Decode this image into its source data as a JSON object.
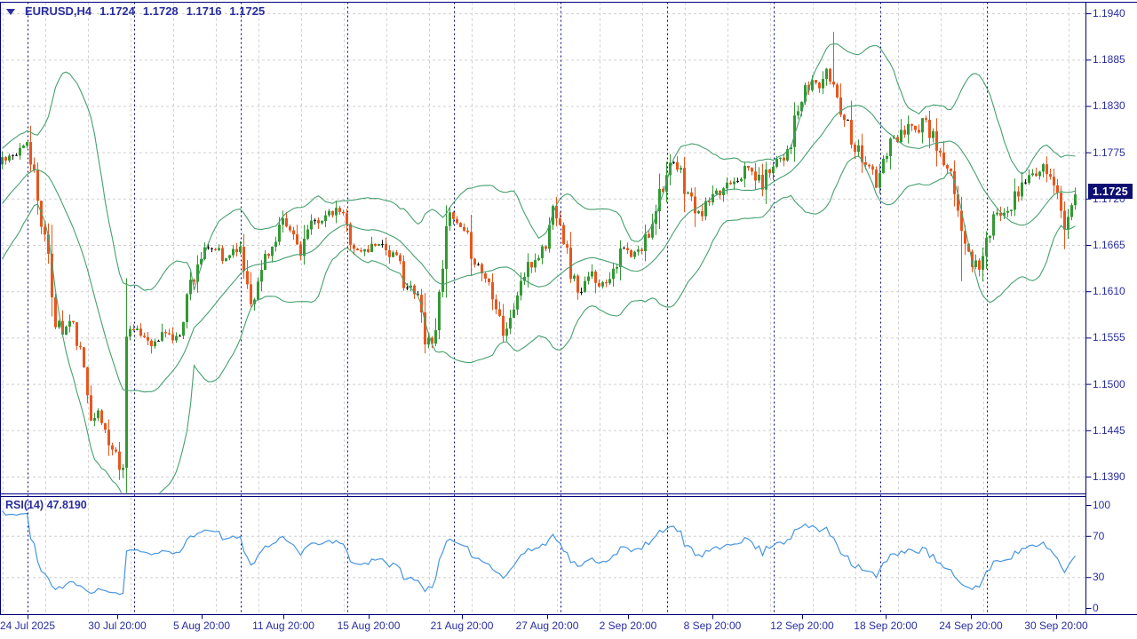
{
  "header": {
    "symbol": "EURUSD,H4",
    "open": "1.1724",
    "high": "1.1728",
    "low": "1.1716",
    "close": "1.1725"
  },
  "indicator_label": {
    "name": "RSI(14)",
    "value": "47.8190"
  },
  "price_axis": {
    "current_price": "1.1725"
  },
  "colors": {
    "background": "#FFFFFF",
    "axis_text": "#282DA0",
    "grid_gray": "#D0D0D0",
    "grid_navy": "#00007E",
    "candle_up": "#339933",
    "candle_down": "#E8561E",
    "doji": "#111111",
    "bollinger": "#46A06E",
    "rsi_line": "#4795E0",
    "badge_bg": "#0D0D72",
    "badge_text": "#FFFFFF"
  },
  "chart_data": {
    "type": "candlestick",
    "symbol": "EURUSD",
    "timeframe": "H4",
    "title": "EURUSD,H4 1.1724 1.1728 1.1716 1.1725",
    "ohlc_display": {
      "open": 1.1724,
      "high": 1.1728,
      "low": 1.1716,
      "close": 1.1725
    },
    "price_axis_ticks": [
      "1.1940",
      "1.1885",
      "1.1830",
      "1.1775",
      "1.1720",
      "1.1665",
      "1.1610",
      "1.1555",
      "1.1500",
      "1.1445",
      "1.1390"
    ],
    "rsi_axis_ticks": [
      "100",
      "70",
      "30",
      "0"
    ],
    "time_axis_ticks": [
      "24 Jul 2025",
      "30 Jul 20:00",
      "5 Aug 20:00",
      "11 Aug 20:00",
      "15 Aug 20:00",
      "21 Aug 20:00",
      "27 Aug 20:00",
      "2 Sep 20:00",
      "8 Sep 20:00",
      "12 Sep 20:00",
      "18 Sep 20:00",
      "24 Sep 20:00",
      "30 Sep 20:00"
    ],
    "price_ylim": [
      1.1367,
      1.1954
    ],
    "bars_visible": 303,
    "overlay": {
      "name": "bollinger-bands",
      "period": 20,
      "deviation": 2
    },
    "indicator": {
      "name": "RSI",
      "period": 14,
      "last_value": 47.819,
      "levels": [
        70,
        30
      ],
      "range": [
        0,
        100
      ]
    },
    "close_keyframes": [
      [
        -20,
        1.1652
      ],
      [
        -14,
        1.1688
      ],
      [
        -8,
        1.1724
      ],
      [
        -3,
        1.1752
      ],
      [
        0,
        1.1768
      ],
      [
        4,
        1.1772
      ],
      [
        7,
        1.1782
      ],
      [
        9,
        1.175
      ],
      [
        11,
        1.17
      ],
      [
        13,
        1.164
      ],
      [
        15,
        1.1578
      ],
      [
        17,
        1.156
      ],
      [
        19,
        1.1574
      ],
      [
        21,
        1.1556
      ],
      [
        23,
        1.151
      ],
      [
        25,
        1.147
      ],
      [
        27,
        1.1462
      ],
      [
        29,
        1.1445
      ],
      [
        31,
        1.1422
      ],
      [
        33,
        1.1408
      ],
      [
        34,
        1.1396
      ],
      [
        35,
        1.157
      ],
      [
        37,
        1.1562
      ],
      [
        40,
        1.1556
      ],
      [
        43,
        1.1548
      ],
      [
        46,
        1.1562
      ],
      [
        49,
        1.155
      ],
      [
        51,
        1.1585
      ],
      [
        53,
        1.162
      ],
      [
        55,
        1.1645
      ],
      [
        57,
        1.1656
      ],
      [
        60,
        1.166
      ],
      [
        62,
        1.1645
      ],
      [
        64,
        1.1656
      ],
      [
        66,
        1.1664
      ],
      [
        68,
        1.164
      ],
      [
        70,
        1.1602
      ],
      [
        72,
        1.1614
      ],
      [
        74,
        1.1654
      ],
      [
        77,
        1.1666
      ],
      [
        79,
        1.169
      ],
      [
        82,
        1.1676
      ],
      [
        84,
        1.1656
      ],
      [
        86,
        1.168
      ],
      [
        89,
        1.1696
      ],
      [
        92,
        1.17
      ],
      [
        95,
        1.1706
      ],
      [
        97,
        1.1686
      ],
      [
        100,
        1.1656
      ],
      [
        103,
        1.166
      ],
      [
        106,
        1.167
      ],
      [
        109,
        1.1656
      ],
      [
        112,
        1.164
      ],
      [
        114,
        1.1616
      ],
      [
        117,
        1.16
      ],
      [
        119,
        1.1562
      ],
      [
        121,
        1.1548
      ],
      [
        123,
        1.16
      ],
      [
        125,
        1.17
      ],
      [
        127,
        1.1694
      ],
      [
        129,
        1.168
      ],
      [
        131,
        1.167
      ],
      [
        134,
        1.164
      ],
      [
        137,
        1.162
      ],
      [
        139,
        1.1602
      ],
      [
        141,
        1.1562
      ],
      [
        143,
        1.1572
      ],
      [
        145,
        1.161
      ],
      [
        147,
        1.163
      ],
      [
        150,
        1.1648
      ],
      [
        153,
        1.1666
      ],
      [
        155,
        1.1708
      ],
      [
        157,
        1.17
      ],
      [
        159,
        1.1652
      ],
      [
        161,
        1.162
      ],
      [
        163,
        1.1608
      ],
      [
        166,
        1.163
      ],
      [
        169,
        1.1618
      ],
      [
        172,
        1.164
      ],
      [
        175,
        1.166
      ],
      [
        177,
        1.165
      ],
      [
        180,
        1.166
      ],
      [
        182,
        1.1682
      ],
      [
        184,
        1.1716
      ],
      [
        186,
        1.174
      ],
      [
        189,
        1.176
      ],
      [
        191,
        1.1748
      ],
      [
        194,
        1.1716
      ],
      [
        196,
        1.17
      ],
      [
        199,
        1.1716
      ],
      [
        202,
        1.1726
      ],
      [
        204,
        1.174
      ],
      [
        207,
        1.1746
      ],
      [
        210,
        1.1756
      ],
      [
        212,
        1.1746
      ],
      [
        214,
        1.1736
      ],
      [
        217,
        1.1766
      ],
      [
        220,
        1.1772
      ],
      [
        222,
        1.1792
      ],
      [
        225,
        1.1836
      ],
      [
        228,
        1.186
      ],
      [
        230,
        1.1854
      ],
      [
        232,
        1.187
      ],
      [
        234,
        1.1856
      ],
      [
        236,
        1.183
      ],
      [
        238,
        1.181
      ],
      [
        240,
        1.1786
      ],
      [
        242,
        1.177
      ],
      [
        244,
        1.176
      ],
      [
        246,
        1.1732
      ],
      [
        248,
        1.1762
      ],
      [
        250,
        1.1786
      ],
      [
        252,
        1.179
      ],
      [
        255,
        1.1812
      ],
      [
        257,
        1.18
      ],
      [
        259,
        1.1812
      ],
      [
        261,
        1.18
      ],
      [
        263,
        1.178
      ],
      [
        265,
        1.1758
      ],
      [
        267,
        1.174
      ],
      [
        269,
        1.1714
      ],
      [
        271,
        1.166
      ],
      [
        273,
        1.1646
      ],
      [
        275,
        1.1642
      ],
      [
        277,
        1.1666
      ],
      [
        279,
        1.169
      ],
      [
        281,
        1.1706
      ],
      [
        283,
        1.171
      ],
      [
        285,
        1.172
      ],
      [
        287,
        1.1736
      ],
      [
        289,
        1.175
      ],
      [
        291,
        1.1744
      ],
      [
        293,
        1.1756
      ],
      [
        295,
        1.174
      ],
      [
        297,
        1.173
      ],
      [
        298,
        1.1712
      ],
      [
        299,
        1.1682
      ],
      [
        300,
        1.17
      ],
      [
        301,
        1.1712
      ],
      [
        302,
        1.1725
      ]
    ],
    "wick_overrides": [
      [
        34,
        "low",
        1.1388
      ],
      [
        125,
        "high",
        1.1712
      ],
      [
        234,
        "high",
        1.1918
      ],
      [
        270,
        "low",
        1.1622
      ],
      [
        299,
        "low",
        1.166
      ]
    ]
  }
}
